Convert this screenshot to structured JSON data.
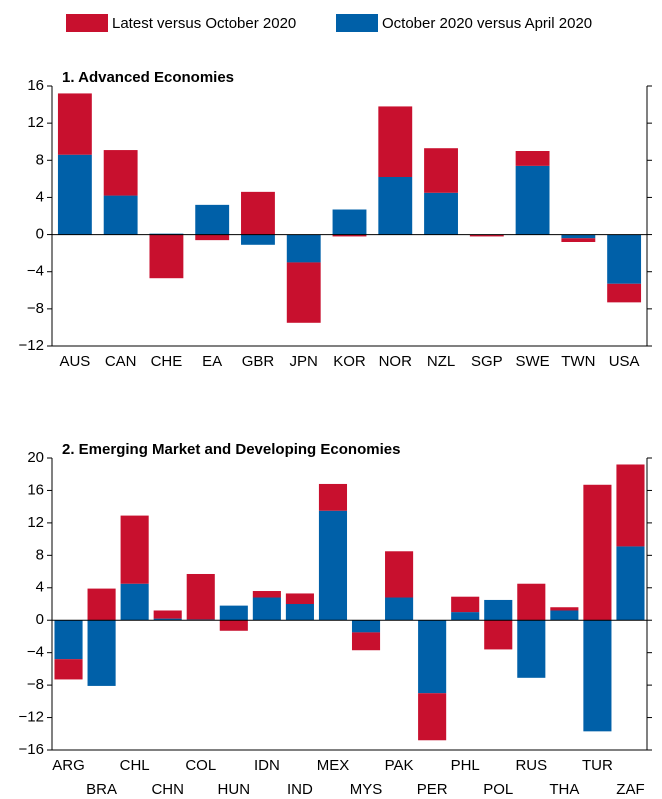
{
  "chart_data": [
    {
      "type": "bar",
      "title": "1. Advanced Economies",
      "categories": [
        "AUS",
        "CAN",
        "CHE",
        "EA",
        "GBR",
        "JPN",
        "KOR",
        "NOR",
        "NZL",
        "SGP",
        "SWE",
        "TWN",
        "USA"
      ],
      "series": [
        {
          "name": "October 2020 versus April 2020",
          "color": "#0060a8",
          "values": [
            8.6,
            4.2,
            0.1,
            3.2,
            -1.1,
            -3.0,
            2.7,
            6.2,
            4.5,
            0,
            7.4,
            -0.4,
            -5.3
          ]
        },
        {
          "name": "Latest versus October 2020",
          "color": "#c8102e",
          "values": [
            6.6,
            4.9,
            -4.7,
            -0.6,
            4.6,
            -6.5,
            -0.2,
            7.6,
            4.8,
            -0.2,
            1.6,
            -0.4,
            -2.0
          ]
        }
      ],
      "ylim": [
        -12,
        16
      ],
      "yticks": [
        {
          "value": -12,
          "label": "−12"
        },
        {
          "value": -8,
          "label": "−8"
        },
        {
          "value": -4,
          "label": "−4"
        },
        0,
        4,
        8,
        12,
        16
      ]
    },
    {
      "type": "bar",
      "title": "2. Emerging Market and Developing Economies",
      "categories": [
        "ARG",
        "BRA",
        "CHL",
        "CHN",
        "COL",
        "HUN",
        "IDN",
        "IND",
        "MEX",
        "MYS",
        "PAK",
        "PER",
        "PHL",
        "POL",
        "RUS",
        "THA",
        "TUR",
        "ZAF"
      ],
      "series": [
        {
          "color": "#0060a8",
          "values": [
            -4.8,
            -8.1,
            4.5,
            0.2,
            0.1,
            1.8,
            2.8,
            2.0,
            13.5,
            -1.5,
            2.8,
            -9.0,
            1.0,
            2.5,
            -7.1,
            1.2,
            -13.7,
            9.1
          ]
        },
        {
          "color": "#c8102e",
          "values": [
            -2.5,
            3.9,
            8.4,
            1.0,
            5.6,
            -1.3,
            0.8,
            1.3,
            3.3,
            -2.2,
            5.7,
            -5.8,
            1.9,
            -3.6,
            4.5,
            0.4,
            16.7,
            10.1
          ]
        }
      ],
      "ylim": [
        -16,
        20
      ],
      "yticks": [
        {
          "value": -16,
          "label": "−16"
        },
        {
          "value": -12,
          "label": "−12"
        },
        {
          "value": -8,
          "label": "−8"
        },
        {
          "value": -4,
          "label": "−4"
        },
        0,
        4,
        8,
        12,
        16,
        20
      ]
    }
  ]
}
